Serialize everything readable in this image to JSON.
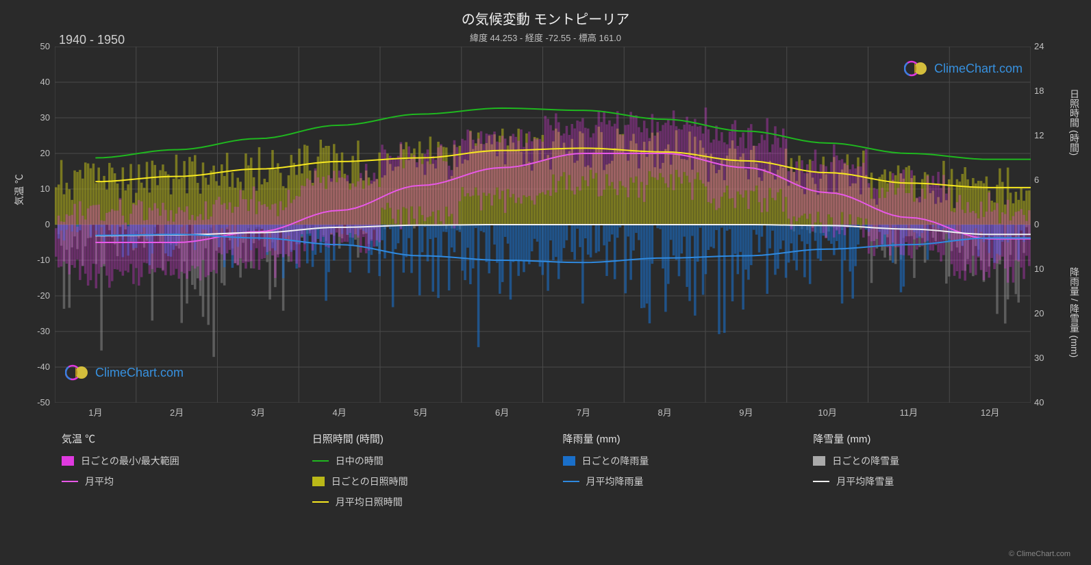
{
  "title": "の気候変動 モントピーリア",
  "subtitle": "緯度 44.253 - 経度 -72.55 - 標高 161.0",
  "period_label": "1940 - 1950",
  "watermark_text": "ClimeChart.com",
  "watermark_color": "#3aa3ff",
  "copyright": "© ClimeChart.com",
  "background_color": "#2a2a2a",
  "plot_background": "#2a2a2a",
  "grid_color": "#4a4a4a",
  "text_color": "#e0e0e0",
  "axes": {
    "x": {
      "months": [
        "1月",
        "2月",
        "3月",
        "4月",
        "5月",
        "6月",
        "7月",
        "8月",
        "9月",
        "10月",
        "11月",
        "12月"
      ]
    },
    "y_left": {
      "label": "気温 ℃",
      "min": -50,
      "max": 50,
      "ticks": [
        50,
        40,
        30,
        20,
        10,
        0,
        -10,
        -20,
        -30,
        -40,
        -50
      ]
    },
    "y_right_top": {
      "label": "日照時間 (時間)",
      "min": 0,
      "max": 24,
      "ticks": [
        24,
        18,
        12,
        6,
        0
      ]
    },
    "y_right_bottom": {
      "label": "降雨量 / 降雪量 (mm)",
      "min": 0,
      "max": 40,
      "ticks": [
        0,
        10,
        20,
        30,
        40
      ]
    }
  },
  "series": {
    "daylight_hours": {
      "type": "line",
      "color": "#1fb81f",
      "width": 2,
      "values": [
        9.0,
        10.1,
        11.6,
        13.4,
        14.9,
        15.7,
        15.4,
        14.2,
        12.6,
        11.0,
        9.6,
        8.8
      ]
    },
    "sunshine_monthly_avg": {
      "type": "line",
      "color": "#f7e820",
      "width": 2,
      "values": [
        5.8,
        6.5,
        7.5,
        8.5,
        9.0,
        10.0,
        10.3,
        9.8,
        8.6,
        7.0,
        5.6,
        5.0
      ]
    },
    "temp_monthly_avg": {
      "type": "line",
      "color": "#e858e8",
      "width": 2,
      "values": [
        -5,
        -5,
        -2,
        4,
        11,
        16,
        20,
        20,
        16,
        9,
        2,
        -4
      ]
    },
    "rain_monthly_avg": {
      "type": "line",
      "color": "#2f8ae0",
      "width": 2,
      "values": [
        2.4,
        2.2,
        3.0,
        4.5,
        7.0,
        8.0,
        8.5,
        7.5,
        7.0,
        5.5,
        4.5,
        3.0
      ]
    },
    "snow_monthly_avg": {
      "type": "line",
      "color": "#f0f0f0",
      "width": 2,
      "values": [
        2.5,
        2.3,
        1.8,
        0.6,
        0.1,
        0,
        0,
        0,
        0,
        0.2,
        1.0,
        2.2
      ]
    },
    "temp_daily_range": {
      "type": "band",
      "color": "#e03ae0",
      "opacity": 0.35
    },
    "sunshine_daily": {
      "type": "bars",
      "color": "#bab818",
      "opacity": 0.55
    },
    "rain_daily": {
      "type": "bars",
      "color": "#1a6fc9",
      "opacity": 0.6
    },
    "snow_daily": {
      "type": "bars",
      "color": "#aaaaaa",
      "opacity": 0.4
    }
  },
  "legend": {
    "columns": [
      {
        "header": "気温 ℃",
        "items": [
          {
            "kind": "swatch",
            "color": "#e03ae0",
            "label": "日ごとの最小/最大範囲"
          },
          {
            "kind": "line",
            "color": "#e858e8",
            "label": "月平均"
          }
        ]
      },
      {
        "header": "日照時間 (時間)",
        "items": [
          {
            "kind": "line",
            "color": "#1fb81f",
            "label": "日中の時間"
          },
          {
            "kind": "swatch",
            "color": "#bab818",
            "label": "日ごとの日照時間"
          },
          {
            "kind": "line",
            "color": "#f7e820",
            "label": "月平均日照時間"
          }
        ]
      },
      {
        "header": "降雨量 (mm)",
        "items": [
          {
            "kind": "swatch",
            "color": "#1a6fc9",
            "label": "日ごとの降雨量"
          },
          {
            "kind": "line",
            "color": "#2f8ae0",
            "label": "月平均降雨量"
          }
        ]
      },
      {
        "header": "降雪量 (mm)",
        "items": [
          {
            "kind": "swatch",
            "color": "#aaaaaa",
            "label": "日ごとの降雪量"
          },
          {
            "kind": "line",
            "color": "#f0f0f0",
            "label": "月平均降雪量"
          }
        ]
      }
    ]
  }
}
